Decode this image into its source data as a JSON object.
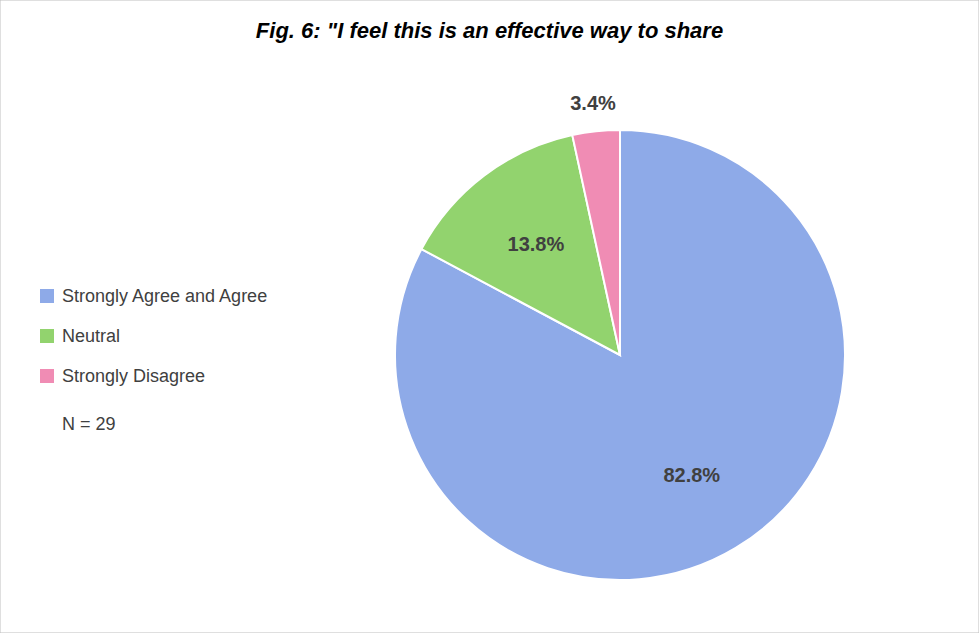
{
  "chart_data": {
    "type": "pie",
    "title": "Fig. 6: \"I feel this is an effective way to share",
    "categories": [
      "Strongly Agree and Agree",
      "Neutral",
      "Strongly Disagree"
    ],
    "values": [
      82.8,
      13.8,
      3.4
    ],
    "value_labels": [
      "82.8%",
      "13.8%",
      "3.4%"
    ],
    "colors": [
      "#8eaae8",
      "#92d36e",
      "#f08cb4"
    ],
    "data_labels": true,
    "legend": "left",
    "annotations": [
      "N = 29"
    ]
  }
}
